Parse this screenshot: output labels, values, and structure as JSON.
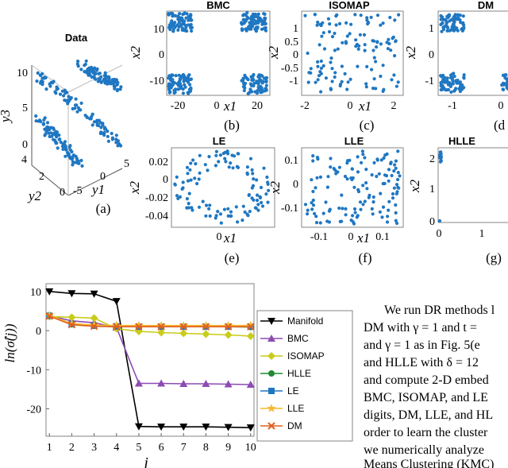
{
  "panels": {
    "a": {
      "title": "Data",
      "caption": "(a)",
      "x1_label": "y1",
      "x2_label": "y2",
      "x3_label": "y3",
      "y3_ticks": [
        "10",
        "5",
        "0"
      ],
      "y2_ticks": [
        "4",
        "2",
        "0"
      ],
      "y1_ticks": [
        "-5",
        "0",
        "5"
      ]
    },
    "b": {
      "title": "BMC",
      "caption": "(b)",
      "ylabel": "x2",
      "xlabel": "x1",
      "yticks": [
        "10",
        "0",
        "-10"
      ],
      "xticks": [
        "-20",
        "0",
        "20"
      ]
    },
    "c": {
      "title": "ISOMAP",
      "caption": "(c)",
      "ylabel": "x2",
      "xlabel": "x1",
      "yticks": [
        "1",
        "0.5",
        "0",
        "-0.5",
        "-1"
      ],
      "xticks": [
        "-2",
        "0",
        "2"
      ]
    },
    "d": {
      "title": "DM",
      "caption": "(d",
      "ylabel": "x2",
      "yticks": [
        "1",
        "0",
        "-1"
      ],
      "xticks": [
        "-1",
        "0"
      ]
    },
    "e": {
      "title": "LE",
      "caption": "(e)",
      "ylabel": "x2",
      "xlabel": "x1",
      "yticks": [
        "0.02",
        "0",
        "-0.02",
        "-0.04"
      ],
      "xticks": [
        "0"
      ]
    },
    "f": {
      "title": "LLE",
      "caption": "(f)",
      "ylabel": "x2",
      "xlabel": "x1",
      "yticks": [
        "0.1",
        "0",
        "-0.1"
      ],
      "xticks": [
        "-0.1",
        "0",
        "0.1"
      ]
    },
    "g": {
      "title": "HLLE",
      "caption": "(g)",
      "ylabel": "x2",
      "xlabel": "1",
      "yticks": [
        "2",
        "1",
        "0"
      ],
      "xticks": [
        "0",
        "1"
      ]
    }
  },
  "chart_data": {
    "type": "line",
    "categories": [
      1,
      2,
      3,
      4,
      5,
      6,
      7,
      8,
      9,
      10
    ],
    "ylabel": "ln(σ̂(j))",
    "xlabel": "j",
    "ylim": [
      -27,
      12
    ],
    "yticks": [
      10,
      0,
      -10,
      -20
    ],
    "xticks": [
      1,
      2,
      3,
      4,
      5,
      6,
      7,
      8,
      9,
      10
    ],
    "series": [
      {
        "name": "Manifold",
        "color": "#000000",
        "marker": "triangle-down",
        "values": [
          10,
          9.5,
          9.4,
          7.5,
          -24.5,
          -24.6,
          -24.6,
          -24.6,
          -24.7,
          -24.8
        ]
      },
      {
        "name": "BMC",
        "color": "#8c4bb5",
        "marker": "triangle-up",
        "values": [
          3.8,
          2.5,
          2.0,
          0.8,
          -13.5,
          -13.5,
          -13.6,
          -13.6,
          -13.7,
          -13.8
        ]
      },
      {
        "name": "ISOMAP",
        "color": "#c9cc1a",
        "marker": "diamond",
        "values": [
          3.6,
          3.4,
          3.2,
          0.5,
          -0.2,
          -0.5,
          -0.7,
          -0.9,
          -1.1,
          -1.4
        ]
      },
      {
        "name": "HLLE",
        "color": "#1f8a2e",
        "marker": "circle",
        "values": [
          3.9,
          1.6,
          1.2,
          1.0,
          1.0,
          1.0,
          1.0,
          1.0,
          1.0,
          0.9
        ]
      },
      {
        "name": "LE",
        "color": "#1f77c2",
        "marker": "square",
        "values": [
          3.8,
          1.7,
          1.3,
          1.1,
          1.0,
          1.0,
          1.0,
          1.0,
          1.0,
          1.0
        ]
      },
      {
        "name": "LLE",
        "color": "#f5b82e",
        "marker": "star",
        "values": [
          3.9,
          1.8,
          1.4,
          1.3,
          1.3,
          1.3,
          1.3,
          1.3,
          1.3,
          1.3
        ]
      },
      {
        "name": "DM",
        "color": "#e0601f",
        "marker": "x",
        "values": [
          3.7,
          1.5,
          1.1,
          1.0,
          1.0,
          1.0,
          1.0,
          1.0,
          1.0,
          1.0
        ]
      }
    ]
  },
  "text": {
    "lines": [
      "We run DR methods l",
      "DM with γ = 1 and t =",
      "and γ = 1 as in Fig. 5(e",
      "and HLLE with δ = 12",
      "and compute 2-D embed",
      "BMC, ISOMAP, and LE",
      "digits, DM, LLE, and HL",
      "order to learn the cluster",
      "we numerically analyze",
      "Means Clustering (KMC)"
    ]
  },
  "colors": {
    "point": "#1f77c2"
  }
}
